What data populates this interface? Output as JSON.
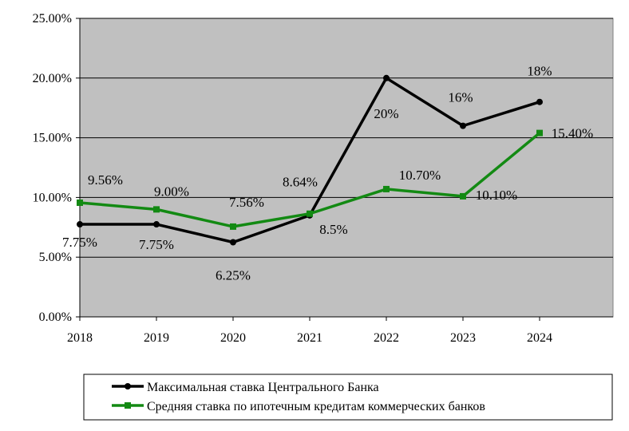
{
  "chart_data": {
    "type": "line",
    "categories": [
      "2018",
      "2019",
      "2020",
      "2021",
      "2022",
      "2023",
      "2024"
    ],
    "y_tick_labels": [
      "0.00%",
      "5.00%",
      "10.00%",
      "15.00%",
      "20.00%",
      "25.00%"
    ],
    "ylim": [
      0,
      25
    ],
    "grid": "horizontal",
    "legend_position": "bottom",
    "background_color": "#c0c0c0",
    "series": [
      {
        "name": "Максимальная ставка Центрального Банка",
        "color": "#000000",
        "marker": "circle",
        "values": [
          7.75,
          7.75,
          6.25,
          8.5,
          20,
          16,
          18
        ],
        "labels": [
          "7.75%",
          "7.75%",
          "6.25%",
          "8.5%",
          "20%",
          "16%",
          "18%"
        ]
      },
      {
        "name": "Средняя ставка по ипотечным кредитам коммерческих банков",
        "color": "#138a13",
        "marker": "square",
        "values": [
          9.56,
          9.0,
          7.56,
          8.64,
          10.7,
          10.1,
          15.4
        ],
        "labels": [
          "9.56%",
          "9.00%",
          "7.56%",
          "8.64%",
          "10.70%",
          "10.10%",
          "15.40%"
        ]
      }
    ]
  }
}
